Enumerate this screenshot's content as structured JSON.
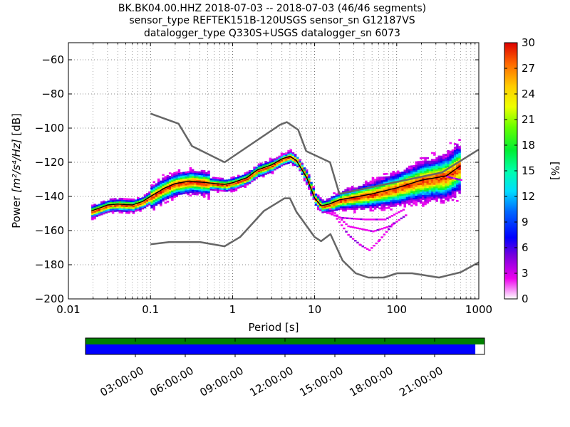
{
  "title": {
    "line1": "BK.BK04.00.HHZ   2018-07-03 -- 2018-07-03  (46/46 segments)",
    "line2": "sensor_type REFTEK151B-120USGS sensor_sn G12187VS",
    "line3": "datalogger_type Q330S+USGS datalogger_sn 6073"
  },
  "chart_data": {
    "type": "heatmap",
    "xlabel": "Period [s]",
    "ylabel_prefix": "Power ",
    "ylabel_units": "[m²/s⁴/Hz]",
    "ylabel_suffix": " [dB]",
    "xscale": "log",
    "xlim": [
      0.01,
      1000
    ],
    "ylim": [
      -200,
      -50
    ],
    "xticks": [
      0.01,
      0.1,
      1,
      10,
      100,
      1000
    ],
    "xtick_labels": [
      "0.01",
      "0.1",
      "1",
      "10",
      "100",
      "1000"
    ],
    "yticks": [
      -200,
      -180,
      -160,
      -140,
      -120,
      -100,
      -80,
      -60
    ],
    "ytick_labels": [
      "−200",
      "−180",
      "−160",
      "−140",
      "−120",
      "−100",
      "−80",
      "−60"
    ],
    "colorbar": {
      "label": "[%]",
      "range": [
        0,
        30
      ],
      "ticks": [
        0,
        3,
        6,
        9,
        12,
        15,
        18,
        21,
        24,
        27,
        30
      ]
    },
    "noise_models": {
      "NHNM": {
        "periods": [
          0.1,
          0.22,
          0.32,
          0.8,
          3.8,
          4.6,
          6.3,
          7.9,
          15.4,
          20,
          354.8,
          1000
        ],
        "values": [
          -91.5,
          -97.4,
          -110.5,
          -120,
          -98,
          -96.5,
          -101,
          -113.5,
          -120,
          -138.5,
          -126,
          -112.5
        ]
      },
      "NLNM": {
        "periods": [
          0.1,
          0.17,
          0.4,
          0.8,
          1.24,
          2.4,
          4.3,
          5,
          6,
          10,
          12,
          15.6,
          21.9,
          31.6,
          45,
          70,
          101,
          154,
          328,
          600,
          1000
        ],
        "values": [
          -168,
          -166.7,
          -166.7,
          -169.2,
          -163.7,
          -148.6,
          -141.1,
          -141.1,
          -149,
          -163.8,
          -166.2,
          -162.1,
          -177.5,
          -185,
          -187.5,
          -187.5,
          -185,
          -185,
          -187.5,
          -184.4,
          -178.6
        ]
      }
    },
    "main_curve": {
      "periods": [
        0.019,
        0.025,
        0.03,
        0.04,
        0.06,
        0.08,
        0.1,
        0.15,
        0.2,
        0.3,
        0.5,
        0.8,
        1,
        1.5,
        2,
        3,
        4,
        5,
        6,
        8,
        10,
        12,
        15,
        20,
        30,
        50,
        100,
        200,
        400,
        600
      ],
      "values": [
        -148.5,
        -146.5,
        -145,
        -144.5,
        -145,
        -143,
        -140,
        -135,
        -132.5,
        -131,
        -132,
        -133,
        -132,
        -129,
        -124.5,
        -121.5,
        -118,
        -116.5,
        -119,
        -129,
        -141,
        -145.5,
        -144.5,
        -142,
        -140.5,
        -138.5,
        -135,
        -130.5,
        -128,
        -122
      ]
    },
    "time_axis": {
      "tick_labels": [
        "03:00:00",
        "06:00:00",
        "09:00:00",
        "12:00:00",
        "15:00:00",
        "18:00:00",
        "21:00:00"
      ],
      "data_available_fraction": 1.0,
      "processed_fraction": 0.977
    }
  }
}
